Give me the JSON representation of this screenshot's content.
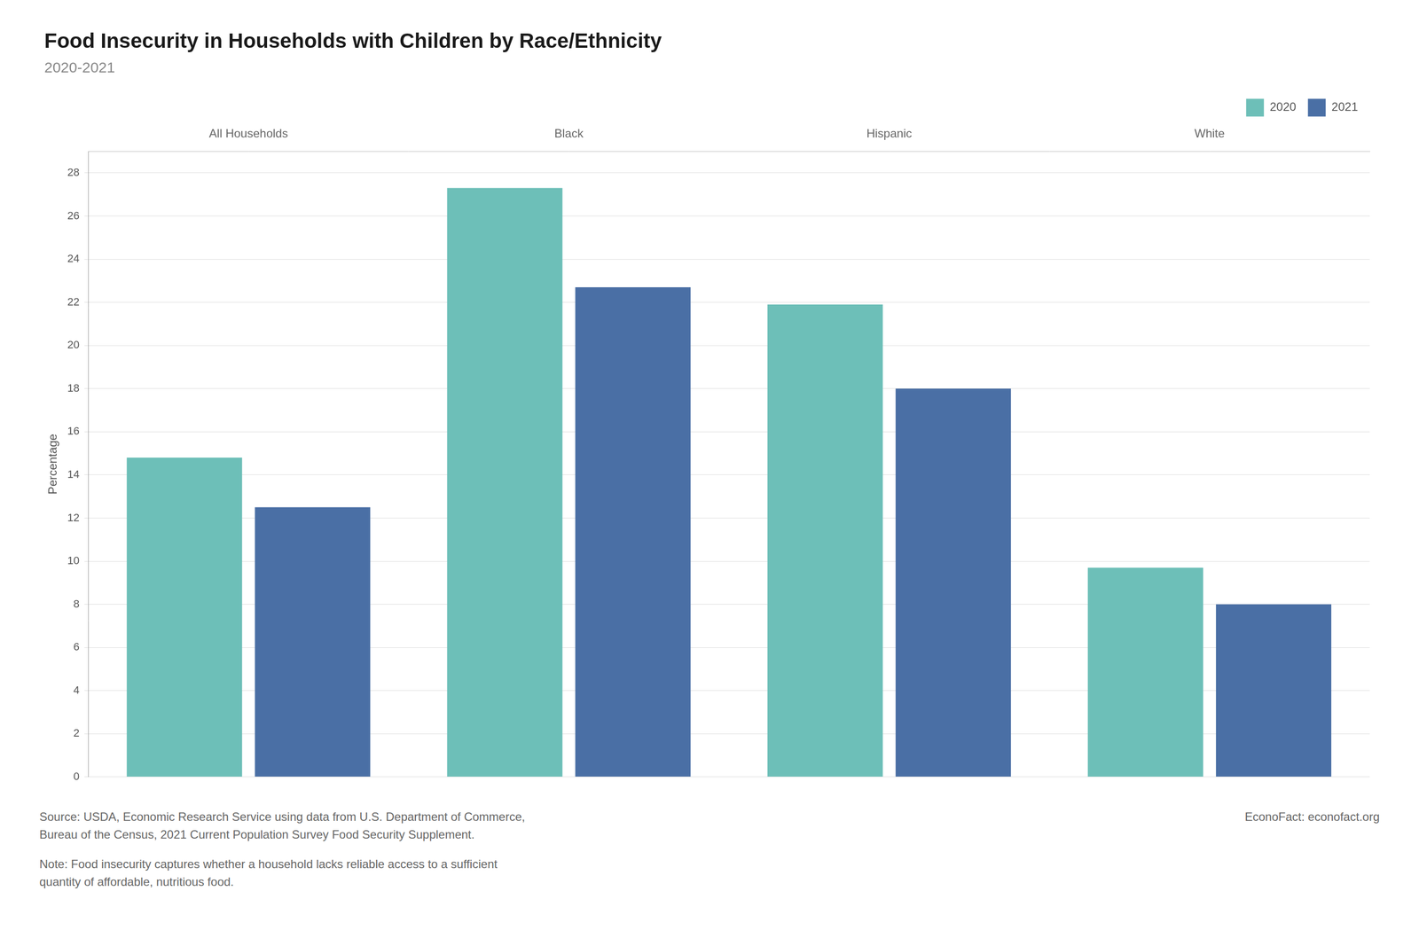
{
  "chart_data": {
    "type": "bar",
    "title": "Food Insecurity in Households with Children by Race/Ethnicity",
    "subtitle": "2020-2021",
    "categories": [
      "All Households",
      "Black",
      "Hispanic",
      "White"
    ],
    "series": [
      {
        "name": "2020",
        "color": "#6dbfb8",
        "values": [
          14.8,
          27.3,
          21.9,
          9.7
        ]
      },
      {
        "name": "2021",
        "color": "#4a6fa5",
        "values": [
          12.5,
          22.7,
          18.0,
          8.0
        ]
      }
    ],
    "y_label": "Percentage",
    "ylim": [
      0,
      29
    ],
    "yticks": [
      0,
      2,
      4,
      6,
      8,
      10,
      12,
      14,
      16,
      18,
      20,
      22,
      24,
      26,
      28
    ],
    "grid": true,
    "legend": "upper right",
    "source": "Source: USDA, Economic Research Service using data from U.S. Department of Commerce,\nBureau of the Census, 2021 Current Population Survey Food Security Supplement.",
    "note": "Note: Food insecurity captures whether a household lacks reliable access to a sufficient\nquantity of affordable, nutritious food.",
    "credit": "EconoFact: econofact.org"
  }
}
